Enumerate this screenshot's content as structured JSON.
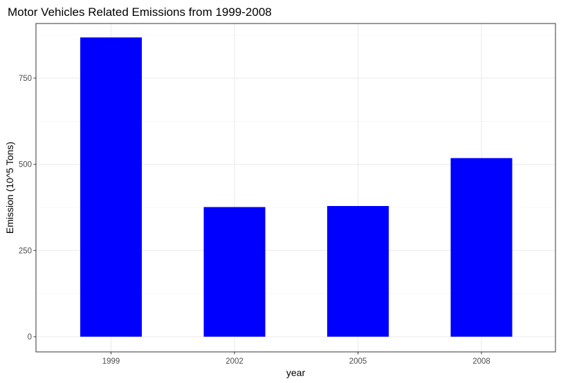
{
  "chart_data": {
    "type": "bar",
    "title": "Motor Vehicles Related Emissions from 1999-2008",
    "xlabel": "year",
    "ylabel": "Emission (10^5 Tons)",
    "categories": [
      "1999",
      "2002",
      "2005",
      "2008"
    ],
    "values": [
      868,
      376,
      379,
      518
    ],
    "ylim": [
      0,
      900
    ],
    "yticks": [
      0,
      250,
      500,
      750
    ],
    "ytick_labels": [
      "0",
      "250",
      "500",
      "750"
    ],
    "grid": true,
    "legend": "none",
    "colors": {
      "bar": "#0000ff",
      "grid_major": "#ebebeb",
      "grid_minor": "#f3f3f3",
      "panel_border": "#333333",
      "background": "#ffffff"
    }
  }
}
